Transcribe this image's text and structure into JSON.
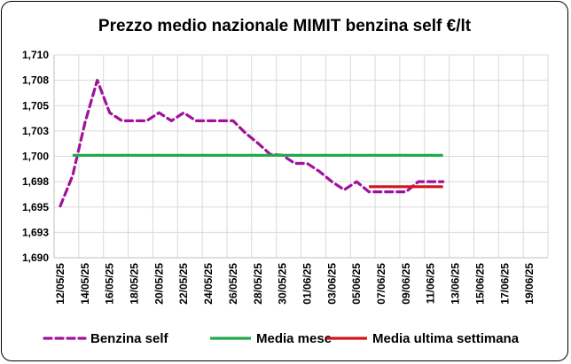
{
  "chart_data": {
    "type": "line",
    "title": "Prezzo medio nazionale MIMIT benzina self €/lt",
    "ylim": [
      1.69,
      1.71
    ],
    "y_ticks": [
      "1,690",
      "1,693",
      "1,695",
      "1,698",
      "1,700",
      "1,703",
      "1,705",
      "1,708",
      "1,710"
    ],
    "x_tick_labels": [
      "12/05/25",
      "14/05/25",
      "16/05/25",
      "18/05/25",
      "20/05/25",
      "22/05/25",
      "24/05/25",
      "26/05/25",
      "28/05/25",
      "30/05/25",
      "01/06/25",
      "03/06/25",
      "05/06/25",
      "07/06/25",
      "09/06/25",
      "11/06/25",
      "13/06/25",
      "15/06/25",
      "17/06/25",
      "19/06/25"
    ],
    "grid": true,
    "legend_position": "bottom",
    "series": [
      {
        "name": "Benzina self",
        "color": "#a0129b",
        "style": "dashed",
        "x": [
          "12/05/25",
          "13/05/25",
          "14/05/25",
          "15/05/25",
          "16/05/25",
          "17/05/25",
          "18/05/25",
          "19/05/25",
          "20/05/25",
          "21/05/25",
          "22/05/25",
          "23/05/25",
          "24/05/25",
          "25/05/25",
          "26/05/25",
          "27/05/25",
          "28/05/25",
          "29/05/25",
          "30/05/25",
          "31/05/25",
          "01/06/25",
          "02/06/25",
          "03/06/25",
          "04/06/25",
          "05/06/25",
          "06/06/25",
          "07/06/25",
          "08/06/25",
          "09/06/25",
          "10/06/25",
          "11/06/25",
          "12/06/25"
        ],
        "values": [
          1.6951,
          1.6981,
          1.7033,
          1.7075,
          1.7043,
          1.7035,
          1.7035,
          1.7035,
          1.7043,
          1.7035,
          1.7043,
          1.7035,
          1.7035,
          1.7035,
          1.7035,
          1.7023,
          1.7013,
          1.7002,
          1.7001,
          1.6993,
          1.6993,
          1.6985,
          1.6975,
          1.6967,
          1.6975,
          1.6965,
          1.6965,
          1.6965,
          1.6965,
          1.6975,
          1.6975,
          1.6975
        ]
      },
      {
        "name": "Media mese",
        "color": "#22a94c",
        "style": "solid",
        "x": [
          "13/05/25",
          "12/06/25"
        ],
        "values": [
          1.7001,
          1.7001
        ]
      },
      {
        "name": "Media ultima settimana",
        "color": "#d0141c",
        "style": "solid",
        "x": [
          "06/06/25",
          "12/06/25"
        ],
        "values": [
          1.697,
          1.697
        ]
      }
    ]
  }
}
